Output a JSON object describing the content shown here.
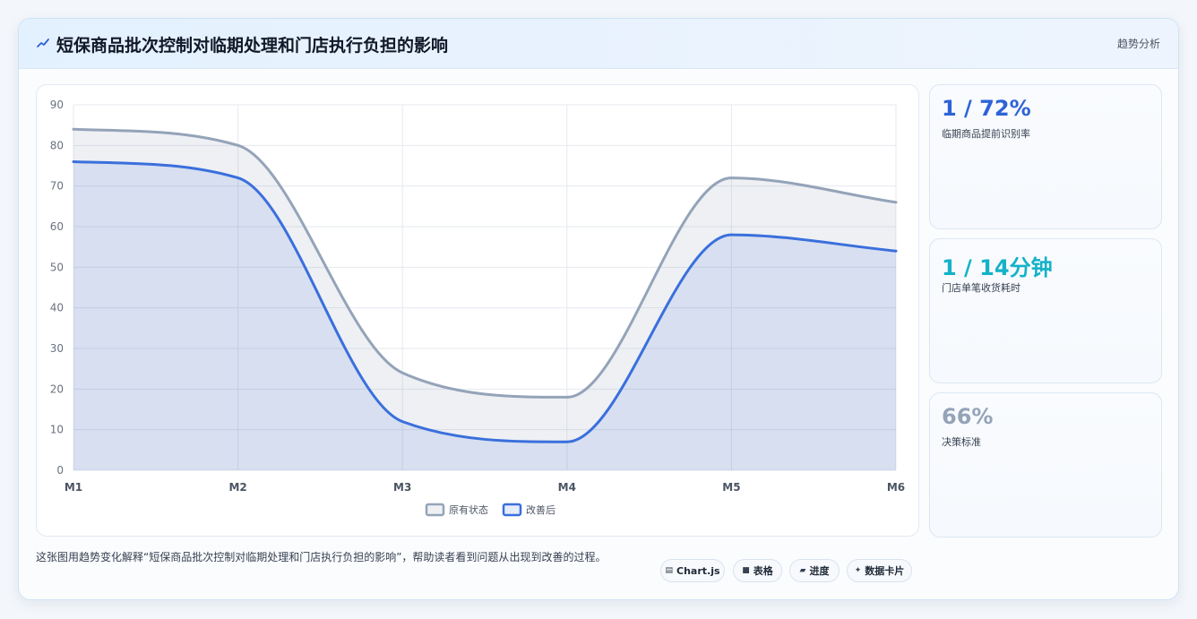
{
  "header": {
    "title": "短保商品批次控制对临期处理和门店执行负担的影响",
    "action_label": "趋势分析",
    "icon": "trend-line-icon"
  },
  "chart_data": {
    "type": "area",
    "categories": [
      "M1",
      "M2",
      "M3",
      "M4",
      "M5",
      "M6"
    ],
    "ylim": [
      0,
      90
    ],
    "yticks": [
      0,
      10,
      20,
      30,
      40,
      50,
      60,
      70,
      80,
      90
    ],
    "grid": true,
    "legend_position": "bottom",
    "series": [
      {
        "name": "原有状态",
        "values": [
          84,
          80,
          24,
          18,
          72,
          66
        ],
        "color": "#94a3b8"
      },
      {
        "name": "改善后",
        "values": [
          76,
          72,
          12,
          7,
          58,
          54
        ],
        "color": "#3a6fdc"
      }
    ]
  },
  "stats": [
    {
      "value": "1 / 72%",
      "label": "临期商品提前识别率",
      "color": "#2d63d6"
    },
    {
      "value": "1 / 14分钟",
      "label": "门店单笔收货耗时",
      "color": "#14b2c8"
    },
    {
      "value": "66%",
      "label": "决策标准",
      "color": "#94a3b8"
    }
  ],
  "footer": {
    "description": "这张图用趋势变化解释“短保商品批次控制对临期处理和门店执行负担的影响”，帮助读者看到问题从出现到改善的过程。",
    "tags": [
      {
        "icon": "▤",
        "label": "Chart.js"
      },
      {
        "icon": "■",
        "label": "表格"
      },
      {
        "icon": "▰",
        "label": "进度"
      },
      {
        "icon": "✦",
        "label": "数据卡片"
      }
    ]
  }
}
